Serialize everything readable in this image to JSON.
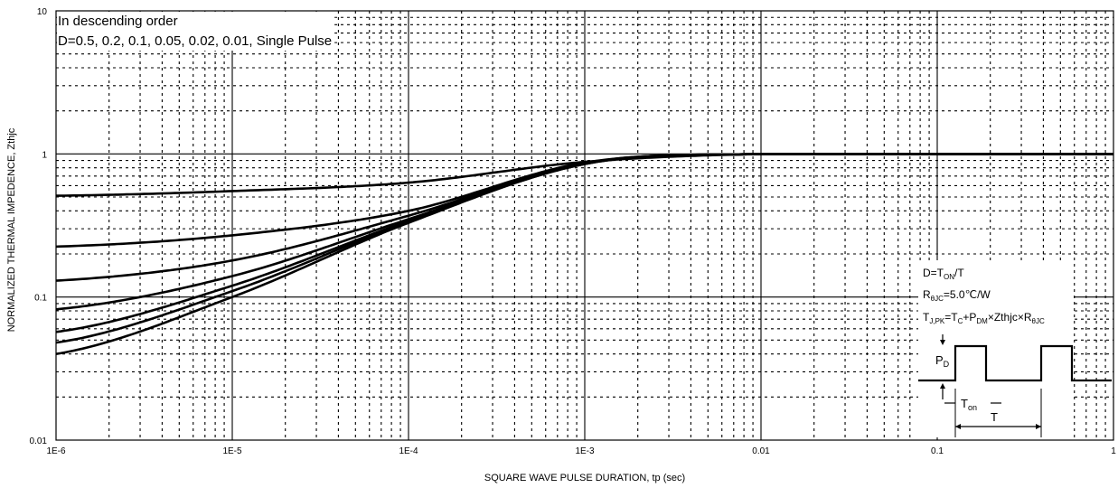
{
  "chart_data": {
    "type": "line",
    "xlabel": "SQUARE WAVE PULSE DURATION,  tp (sec)",
    "ylabel": "NORMALIZED THERMAL IMPEDENCE,  Zthjc",
    "x_scale": "log",
    "y_scale": "log",
    "xlim": [
      1e-06,
      1
    ],
    "ylim": [
      0.01,
      10
    ],
    "x_ticks": [
      "1E-6",
      "1E-5",
      "1E-4",
      "1E-3",
      "0.01",
      "0.1",
      "1"
    ],
    "y_ticks": [
      "10",
      "1",
      "0.1",
      "0.01"
    ],
    "grid": true,
    "annotation_lines": [
      "In descending order",
      "D=0.5, 0.2, 0.1, 0.05, 0.02, 0.01, Single Pulse"
    ],
    "series": [
      {
        "x": [
          1e-06,
          1e-05,
          0.0001,
          0.001,
          0.01,
          0.1,
          1
        ],
        "y": [
          0.51,
          0.55,
          0.63,
          0.88,
          1.0,
          1.0,
          1.0
        ]
      },
      {
        "x": [
          1e-06,
          1e-05,
          0.0001,
          0.001,
          0.01,
          0.1,
          1
        ],
        "y": [
          0.225,
          0.27,
          0.4,
          0.87,
          1.0,
          1.0,
          1.0
        ]
      },
      {
        "x": [
          1e-06,
          1e-05,
          0.0001,
          0.001,
          0.01,
          0.1,
          1
        ],
        "y": [
          0.13,
          0.18,
          0.37,
          0.86,
          1.0,
          1.0,
          1.0
        ]
      },
      {
        "x": [
          1e-06,
          1e-05,
          0.0001,
          0.001,
          0.01,
          0.1,
          1
        ],
        "y": [
          0.082,
          0.14,
          0.35,
          0.86,
          1.0,
          1.0,
          1.0
        ]
      },
      {
        "x": [
          1e-06,
          1e-05,
          0.0001,
          0.001,
          0.01,
          0.1,
          1
        ],
        "y": [
          0.057,
          0.12,
          0.34,
          0.855,
          1.0,
          1.0,
          1.0
        ]
      },
      {
        "x": [
          1e-06,
          1e-05,
          0.0001,
          0.001,
          0.01,
          0.1,
          1
        ],
        "y": [
          0.048,
          0.11,
          0.335,
          0.85,
          1.0,
          1.0,
          1.0
        ]
      },
      {
        "x": [
          1e-06,
          1e-05,
          0.0001,
          0.001,
          0.01,
          0.1,
          1
        ],
        "y": [
          0.04,
          0.1,
          0.33,
          0.85,
          1.0,
          1.0,
          1.0
        ]
      }
    ],
    "inset": {
      "lines": [
        "D=T",
        "ON",
        "/T",
        "R",
        "θJC",
        "=5.0℃/W",
        "T",
        "J,PK",
        "=T",
        "C",
        "+P",
        "DM",
        "×Zthjc×R",
        "θJC"
      ],
      "waveform_labels": {
        "p": "P",
        "p_sub": "D",
        "ton": "T",
        "ton_sub": "on",
        "t": "T"
      }
    }
  }
}
